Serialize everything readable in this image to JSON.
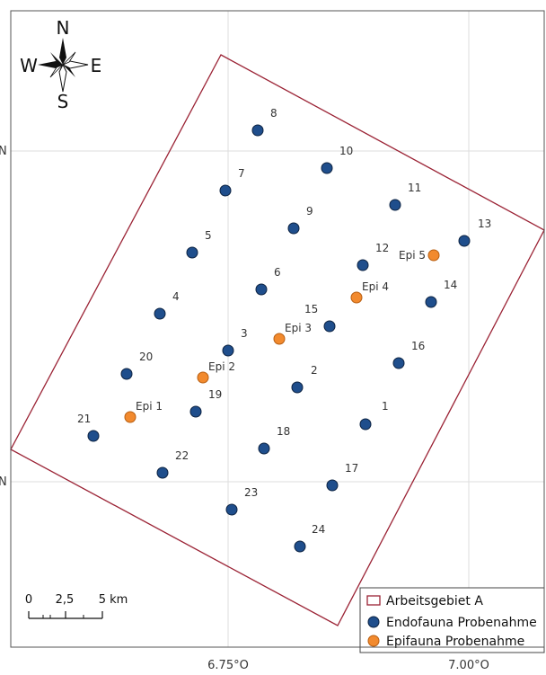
{
  "map": {
    "grid_labels_bottom": [
      "6.75°O",
      "7.00°O"
    ],
    "grid_labels_left": [
      "N",
      "N"
    ],
    "colors": {
      "frame": "#555555",
      "grid": "#dddddd",
      "area_outline": "#9b2335",
      "endofauna_fill": "#1f4e8c",
      "endofauna_stroke": "#0d2342",
      "epifauna_fill": "#f28a2e",
      "epifauna_stroke": "#b85f12"
    }
  },
  "compass": {
    "north": "N",
    "south": "S",
    "east": "E",
    "west": "W"
  },
  "scale_bar": {
    "labels": [
      "0",
      "2,5",
      "5 km"
    ]
  },
  "legend": {
    "items": [
      {
        "symbol": "area-outline",
        "label": "Arbeitsgebiet A"
      },
      {
        "symbol": "endofauna-point",
        "label": "Endofauna Probenahme"
      },
      {
        "symbol": "epifauna-point",
        "label": "Epifauna Probenahme"
      }
    ]
  },
  "endofauna_stations": [
    "1",
    "2",
    "3",
    "4",
    "5",
    "6",
    "7",
    "8",
    "9",
    "10",
    "11",
    "12",
    "13",
    "14",
    "15",
    "16",
    "17",
    "18",
    "19",
    "20",
    "21",
    "22",
    "23",
    "24"
  ],
  "epifauna_stations": [
    "Epi 1",
    "Epi 2",
    "Epi 3",
    "Epi 4",
    "Epi 5"
  ]
}
